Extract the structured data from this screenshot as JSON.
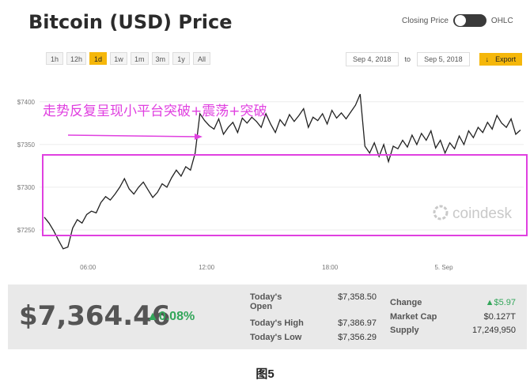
{
  "title": "Bitcoin (USD) Price",
  "toggle": {
    "left_label": "Closing Price",
    "right_label": "OHLC"
  },
  "ranges": [
    "1h",
    "12h",
    "1d",
    "1w",
    "1m",
    "3m",
    "1y",
    "All"
  ],
  "active_range": "1d",
  "date_from": "Sep 4, 2018",
  "date_to_label": "to",
  "date_to": "Sep 5, 2018",
  "export_label": "Export",
  "annotation": "走势反复呈现小平台突破+震荡+突破",
  "watermark": "coindesk",
  "colors": {
    "line": "#222222",
    "box": "#e040e0",
    "annotation": "#e040e0",
    "accent": "#f5b70a",
    "positive": "#33a65a"
  },
  "chart_data": {
    "type": "line",
    "y_ticks": [
      "$7400",
      "$7350",
      "$7300",
      "$7250"
    ],
    "x_ticks": [
      "06:00",
      "12:00",
      "18:00",
      "5. Sep"
    ],
    "ylim": [
      7225,
      7410
    ],
    "series": [
      {
        "values": [
          7265,
          7258,
          7249,
          7238,
          7228,
          7230,
          7252,
          7262,
          7258,
          7268,
          7272,
          7270,
          7282,
          7289,
          7285,
          7292,
          7300,
          7310,
          7298,
          7292,
          7300,
          7306,
          7297,
          7288,
          7294,
          7304,
          7300,
          7311,
          7320,
          7313,
          7324,
          7320,
          7340,
          7386,
          7378,
          7372,
          7368,
          7380,
          7362,
          7370,
          7376,
          7364,
          7381,
          7375,
          7382,
          7377,
          7370,
          7386,
          7374,
          7364,
          7379,
          7372,
          7385,
          7377,
          7384,
          7392,
          7370,
          7382,
          7378,
          7386,
          7374,
          7390,
          7381,
          7387,
          7380,
          7388,
          7396,
          7409,
          7348,
          7340,
          7352,
          7336,
          7350,
          7330,
          7348,
          7345,
          7355,
          7347,
          7361,
          7350,
          7363,
          7355,
          7366,
          7346,
          7355,
          7340,
          7352,
          7345,
          7360,
          7350,
          7366,
          7358,
          7370,
          7364,
          7376,
          7368,
          7384,
          7375,
          7370,
          7380,
          7362,
          7367
        ]
      }
    ]
  },
  "footer": {
    "price": "$7,364.46",
    "change_pct": "▲0.08%",
    "todays_open_label": "Today's Open",
    "todays_open": "$7,358.50",
    "todays_high_label": "Today's High",
    "todays_high": "$7,386.97",
    "todays_low_label": "Today's Low",
    "todays_low": "$7,356.29",
    "change_label": "Change",
    "change_value": "▲$5.97",
    "market_cap_label": "Market Cap",
    "market_cap": "$0.127T",
    "supply_label": "Supply",
    "supply": "17,249,950"
  },
  "caption": "图5"
}
